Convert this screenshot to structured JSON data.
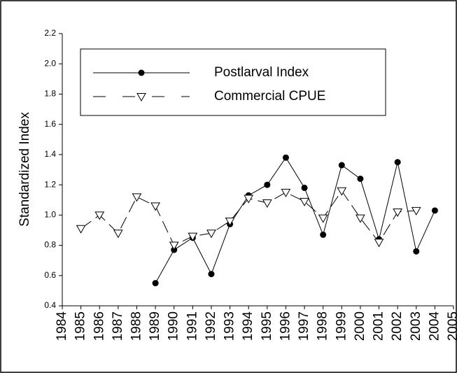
{
  "chart_data": {
    "type": "line",
    "y_label": "Standardized Index",
    "x": [
      1985,
      1986,
      1987,
      1988,
      1989,
      1990,
      1991,
      1992,
      1993,
      1994,
      1995,
      1996,
      1997,
      1998,
      1999,
      2000,
      2001,
      2002,
      2003,
      2004
    ],
    "series": [
      {
        "name": "Postlarval Index",
        "color": "#000000",
        "marker": "circle",
        "dashed": false,
        "values": [
          null,
          null,
          null,
          null,
          0.55,
          0.77,
          0.85,
          0.61,
          0.94,
          1.13,
          1.2,
          1.38,
          1.18,
          0.87,
          1.33,
          1.24,
          0.84,
          1.35,
          0.76,
          1.03
        ]
      },
      {
        "name": "Commercial CPUE",
        "color": "#000000",
        "marker": "triangle-down",
        "dashed": true,
        "values": [
          0.91,
          1.0,
          0.88,
          1.12,
          1.06,
          0.8,
          0.86,
          0.88,
          0.96,
          1.11,
          1.08,
          1.15,
          1.09,
          0.98,
          1.16,
          0.98,
          0.82,
          1.02,
          1.03,
          null
        ]
      }
    ],
    "xlim": [
      1984,
      2005
    ],
    "xticks": [
      1984,
      1985,
      1986,
      1987,
      1988,
      1989,
      1990,
      1991,
      1992,
      1993,
      1994,
      1995,
      1996,
      1997,
      1998,
      1999,
      2000,
      2001,
      2002,
      2003,
      2004,
      2005
    ],
    "ylim": [
      0.4,
      2.2
    ],
    "yticks": [
      0.4,
      0.6,
      0.8,
      {
        "value": 1.0,
        "label": "1.0"
      },
      1.2,
      1.4,
      1.6,
      1.8,
      {
        "value": 2.0,
        "label": "2.0"
      },
      2.2
    ],
    "legend": "top-left"
  }
}
